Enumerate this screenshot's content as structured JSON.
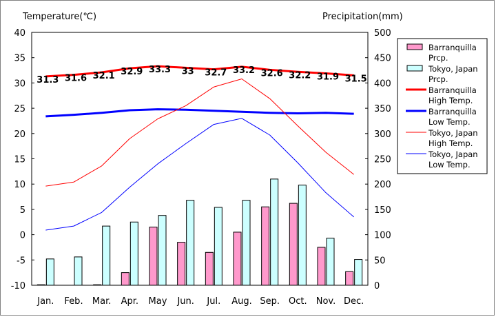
{
  "chart_data": {
    "type": "bar",
    "left_axis_title": "Temperature(℃)",
    "right_axis_title": "Precipitation(mm)",
    "categories": [
      "Jan.",
      "Feb.",
      "Mar.",
      "Apr.",
      "May",
      "Jun.",
      "Jul.",
      "Aug.",
      "Sep.",
      "Oct.",
      "Nov.",
      "Dec."
    ],
    "left_axis": {
      "min": -10,
      "max": 40,
      "ticks": [
        "40",
        "35",
        "30",
        "25",
        "20",
        "15",
        "10",
        "5",
        "0",
        "-5",
        "-10"
      ]
    },
    "right_axis": {
      "min": 0,
      "max": 500,
      "ticks": [
        "500",
        "450",
        "400",
        "350",
        "300",
        "250",
        "200",
        "150",
        "100",
        "50",
        "0"
      ]
    },
    "series": [
      {
        "name": "Barranquilla Prcp.",
        "kind": "bar",
        "axis": "right",
        "color": "#ff99cc",
        "values": [
          1,
          0,
          1,
          25,
          115,
          85,
          65,
          105,
          155,
          162,
          75,
          27
        ]
      },
      {
        "name": "Tokyo, Japan Prcp.",
        "kind": "bar",
        "axis": "right",
        "color": "#ccffff",
        "values": [
          52,
          56,
          117,
          125,
          138,
          168,
          154,
          168,
          210,
          198,
          93,
          51
        ]
      },
      {
        "name": "Barranquilla High Temp.",
        "kind": "line",
        "axis": "left",
        "color": "#ff0000",
        "width": 3,
        "values": [
          31.3,
          31.6,
          32.1,
          32.9,
          33.3,
          33.0,
          32.7,
          33.2,
          32.6,
          32.2,
          31.9,
          31.5
        ],
        "labels": [
          "31.3",
          "31.6",
          "32.1",
          "32.9",
          "33.3",
          "33",
          "32.7",
          "33.2",
          "32.6",
          "32.2",
          "31.9",
          "31.5"
        ]
      },
      {
        "name": "Barranquilla Low Temp.",
        "kind": "line",
        "axis": "left",
        "color": "#0000ff",
        "width": 3,
        "values": [
          23.4,
          23.7,
          24.1,
          24.6,
          24.8,
          24.7,
          24.5,
          24.3,
          24.1,
          24.0,
          24.1,
          23.9
        ]
      },
      {
        "name": "Tokyo, Japan High Temp.",
        "kind": "line",
        "axis": "left",
        "color": "#ff0000",
        "width": 1,
        "values": [
          9.6,
          10.4,
          13.6,
          19.0,
          22.9,
          25.5,
          29.2,
          30.8,
          26.9,
          21.5,
          16.3,
          11.9
        ]
      },
      {
        "name": "Tokyo, Japan Low Temp.",
        "kind": "line",
        "axis": "left",
        "color": "#0000ff",
        "width": 1,
        "values": [
          0.9,
          1.7,
          4.4,
          9.4,
          14.0,
          18.0,
          21.8,
          23.0,
          19.7,
          14.2,
          8.3,
          3.5
        ]
      }
    ],
    "legend": [
      {
        "label_line1": "Barranquilla",
        "label_line2": "Prcp.",
        "kind": "box",
        "color": "#ff99cc"
      },
      {
        "label_line1": "Tokyo, Japan",
        "label_line2": "Prcp.",
        "kind": "box",
        "color": "#ccffff"
      },
      {
        "label_line1": "Barranquilla",
        "label_line2": "High Temp.",
        "kind": "line",
        "color": "#ff0000",
        "width": 3
      },
      {
        "label_line1": "Barranquilla",
        "label_line2": "Low Temp.",
        "kind": "line",
        "color": "#0000ff",
        "width": 3
      },
      {
        "label_line1": "Tokyo, Japan",
        "label_line2": "High Temp.",
        "kind": "line",
        "color": "#ff0000",
        "width": 1
      },
      {
        "label_line1": "Tokyo, Japan",
        "label_line2": "Low Temp.",
        "kind": "line",
        "color": "#0000ff",
        "width": 1
      }
    ],
    "legend_position": "right",
    "grid": false
  }
}
